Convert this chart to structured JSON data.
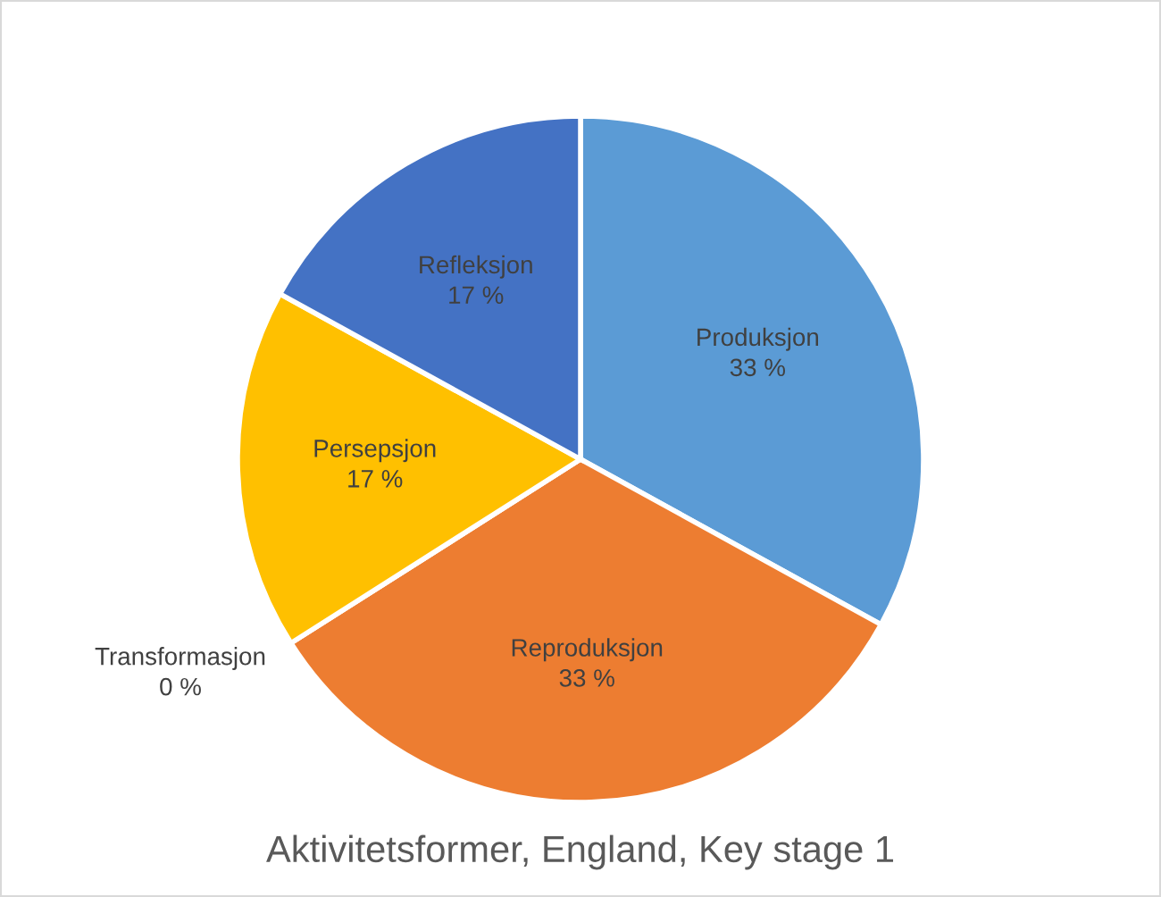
{
  "chart_data": {
    "type": "pie",
    "title": "Aktivitetsformer, England, Key stage 1",
    "categories": [
      "Produksjon",
      "Reproduksjon",
      "Transformasjon",
      "Persepsjon",
      "Refleksjon"
    ],
    "values": [
      33,
      33,
      0,
      17,
      17
    ],
    "value_labels": [
      "33 %",
      "33 %",
      "0 %",
      "17 %",
      "17 %"
    ],
    "colors": [
      "#5b9bd5",
      "#ed7d31",
      "#a5a5a5",
      "#ffc000",
      "#4472c4"
    ],
    "legend": false
  }
}
